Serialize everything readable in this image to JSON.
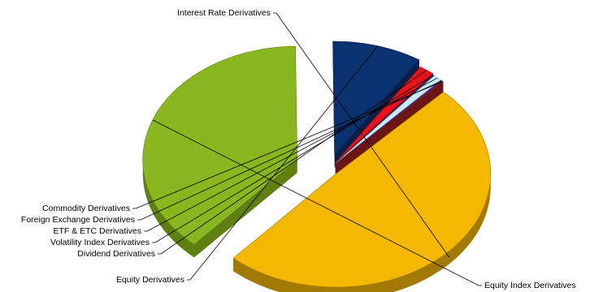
{
  "chart_data": {
    "type": "pie",
    "style": "3d-exploded",
    "title": "",
    "legend": "none",
    "labels_position": "outside-with-leader-lines",
    "categories": [
      "Interest Rate Derivatives",
      "Equity Index Derivatives",
      "Equity Derivatives",
      "Dividend Derivatives",
      "Volatility Index Derivatives",
      "ETF & ETC Derivatives",
      "Foreign Exchange Derivatives",
      "Commodity Derivatives"
    ],
    "values": [
      49.4,
      38.2,
      9.4,
      1.6,
      0.2,
      0.9,
      0.2,
      0.1
    ],
    "colors": [
      "#f5b800",
      "#8ab61f",
      "#0b3270",
      "#e8121b",
      "#3d2a6b",
      "#c8ecf7",
      "#5a2d8e",
      "#9e1f1f"
    ],
    "side_colors": [
      "#a37a00",
      "#5f7f11",
      "#061f49",
      "#9a0b10",
      "#2a1c4a",
      "#8fb6c4",
      "#3b1d5e",
      "#6b1515"
    ]
  }
}
